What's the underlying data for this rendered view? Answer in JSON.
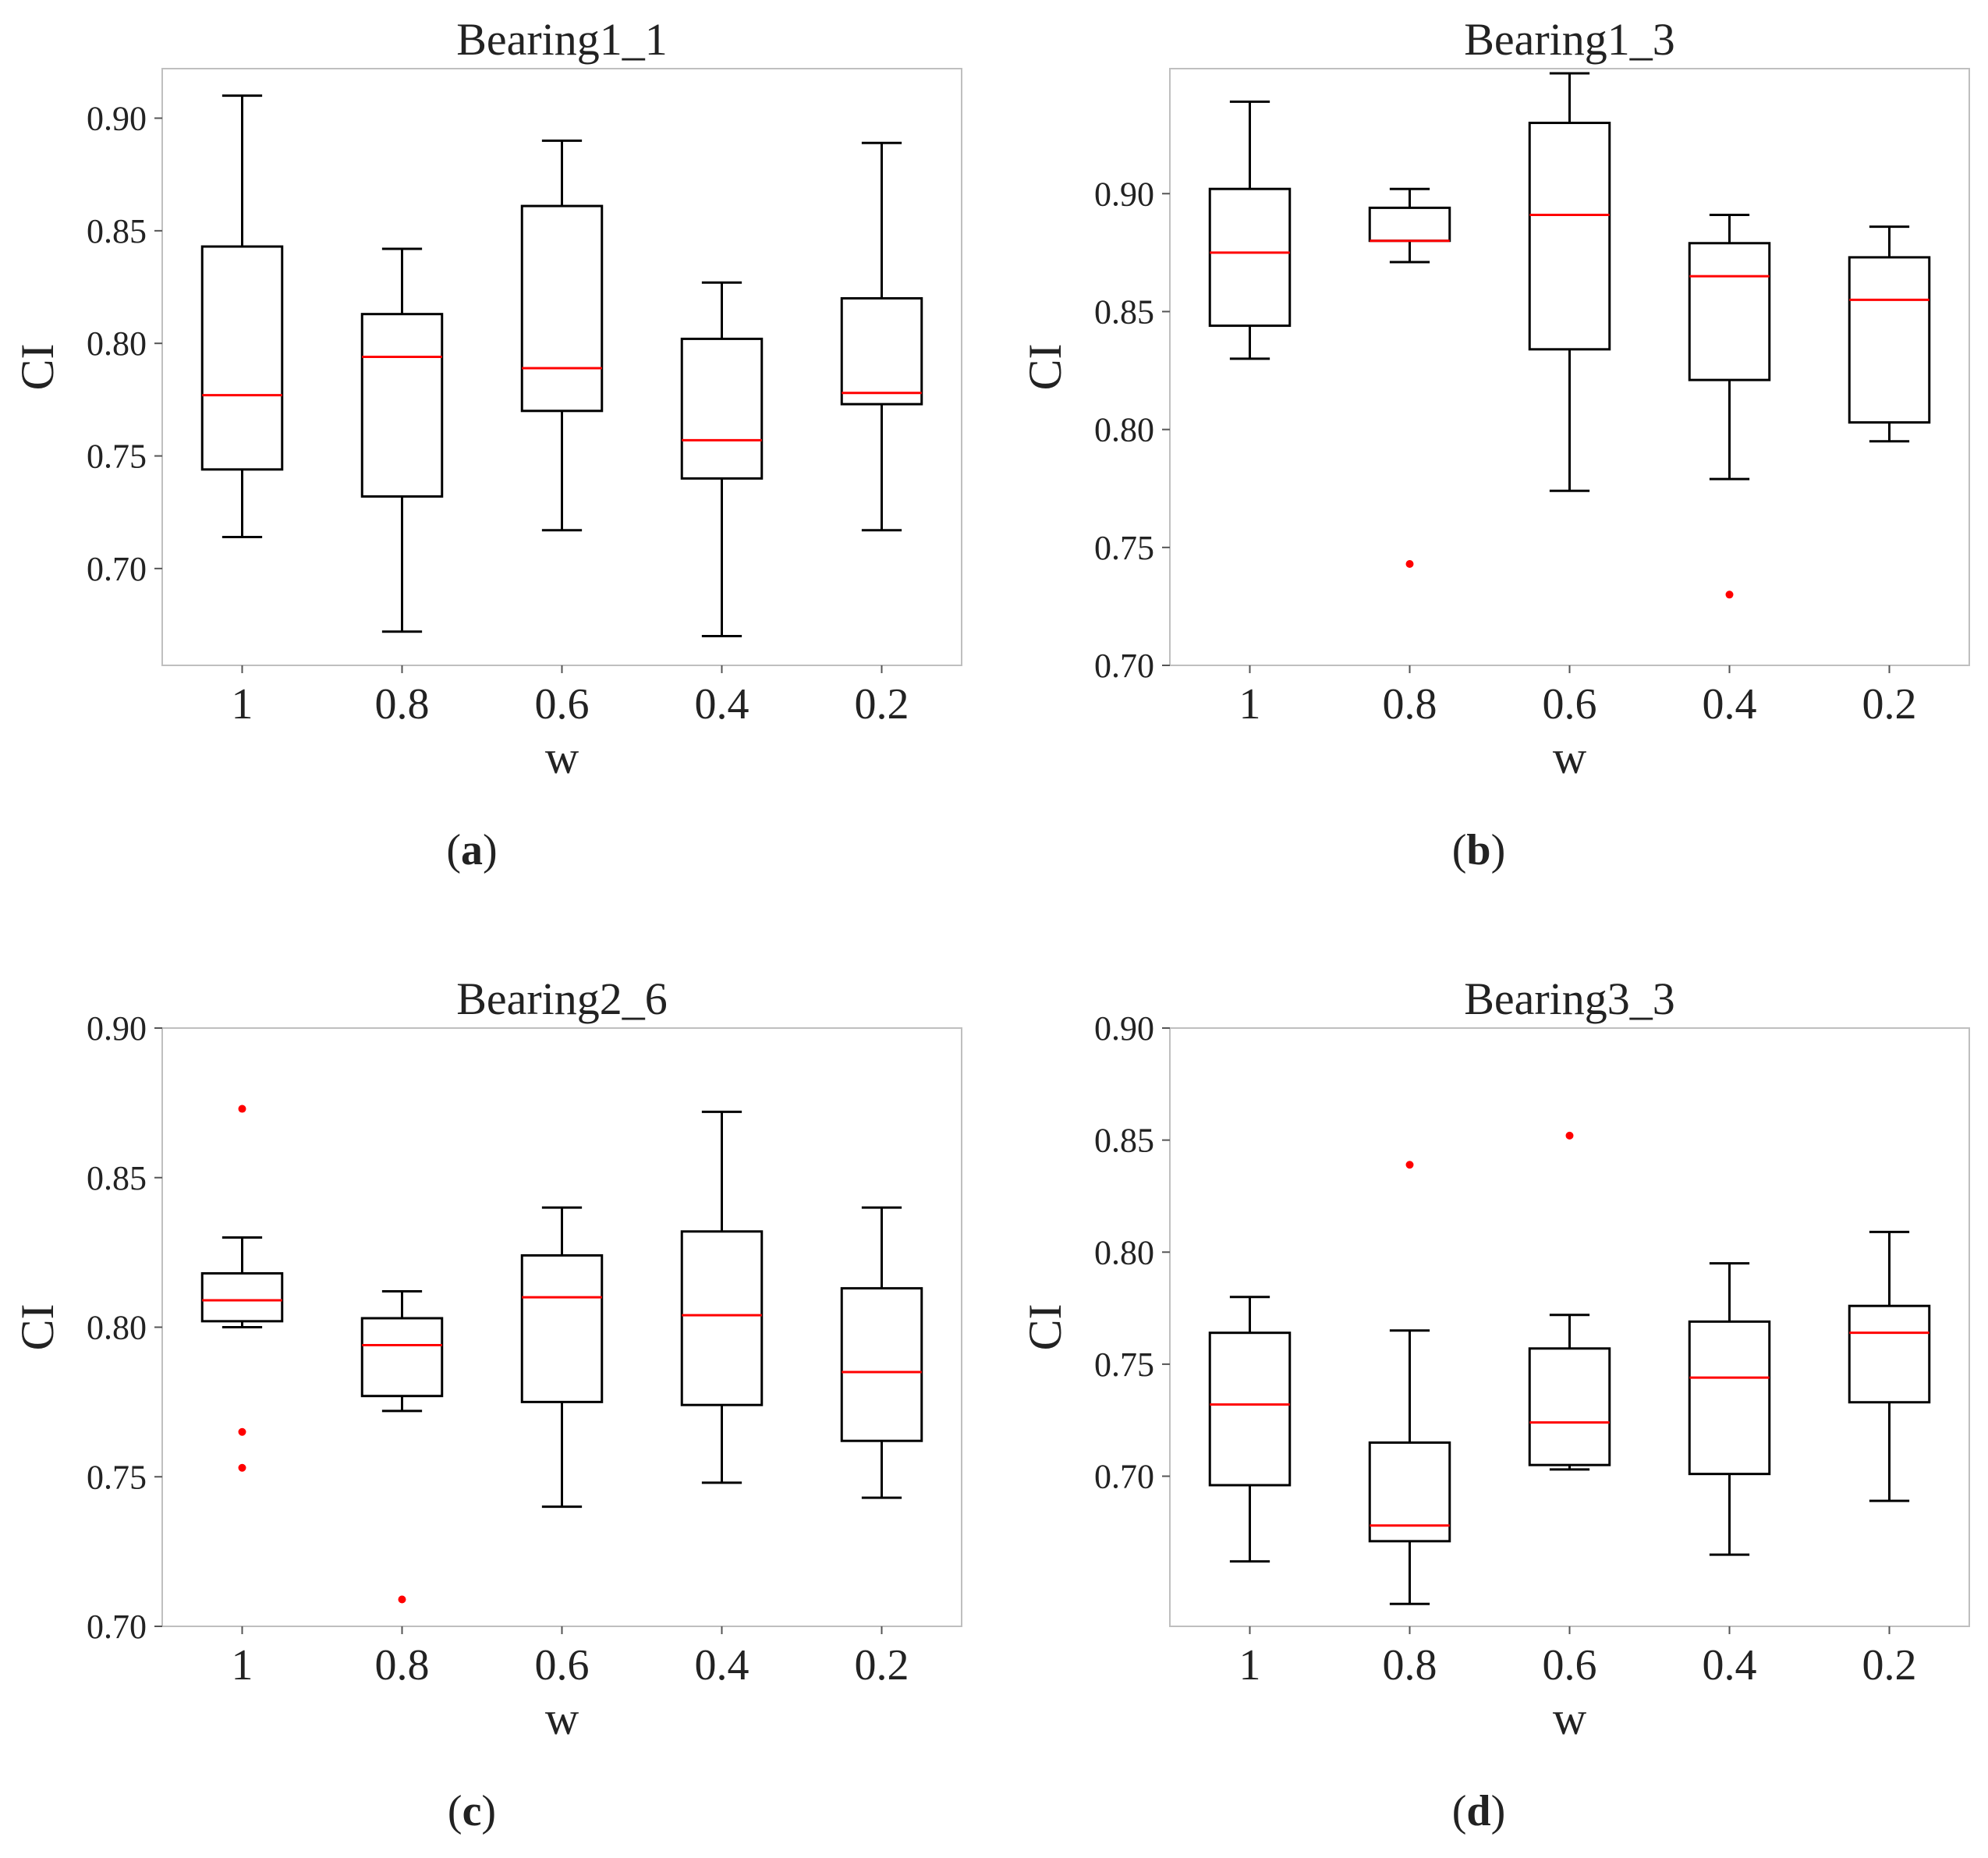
{
  "figure": {
    "captions": [
      "(a)",
      "(b)",
      "(c)",
      "(d)"
    ],
    "caption_letters": [
      "a",
      "b",
      "c",
      "d"
    ]
  },
  "colors": {
    "box": "#000000",
    "median": "#ff0000",
    "outlier": "#ff0000",
    "frame": "#bfbfbf"
  },
  "chart_data": [
    {
      "type": "boxplot",
      "title": "Bearing1_1",
      "xlabel": "w",
      "ylabel": "CI",
      "categories": [
        "1",
        "0.8",
        "0.6",
        "0.4",
        "0.2"
      ],
      "ylim": [
        0.657,
        0.922
      ],
      "yticks": [
        0.7,
        0.75,
        0.8,
        0.85,
        0.9
      ],
      "ytick_labels": [
        "0.70",
        "0.75",
        "0.80",
        "0.85",
        "0.90"
      ],
      "grid": false,
      "boxes": [
        {
          "whisker_low": 0.714,
          "q1": 0.744,
          "median": 0.777,
          "q3": 0.843,
          "whisker_high": 0.91,
          "outliers": []
        },
        {
          "whisker_low": 0.672,
          "q1": 0.732,
          "median": 0.794,
          "q3": 0.813,
          "whisker_high": 0.842,
          "outliers": []
        },
        {
          "whisker_low": 0.717,
          "q1": 0.77,
          "median": 0.789,
          "q3": 0.861,
          "whisker_high": 0.89,
          "outliers": []
        },
        {
          "whisker_low": 0.67,
          "q1": 0.74,
          "median": 0.757,
          "q3": 0.802,
          "whisker_high": 0.827,
          "outliers": []
        },
        {
          "whisker_low": 0.717,
          "q1": 0.773,
          "median": 0.778,
          "q3": 0.82,
          "whisker_high": 0.889,
          "outliers": []
        }
      ]
    },
    {
      "type": "boxplot",
      "title": "Bearing1_3",
      "xlabel": "w",
      "ylabel": "CI",
      "categories": [
        "1",
        "0.8",
        "0.6",
        "0.4",
        "0.2"
      ],
      "ylim": [
        0.7,
        0.953
      ],
      "yticks": [
        0.7,
        0.75,
        0.8,
        0.85,
        0.9
      ],
      "ytick_labels": [
        "0.70",
        "0.75",
        "0.80",
        "0.85",
        "0.90"
      ],
      "grid": false,
      "boxes": [
        {
          "whisker_low": 0.83,
          "q1": 0.844,
          "median": 0.875,
          "q3": 0.902,
          "whisker_high": 0.939,
          "outliers": []
        },
        {
          "whisker_low": 0.871,
          "q1": 0.88,
          "median": 0.88,
          "q3": 0.894,
          "whisker_high": 0.902,
          "outliers": [
            0.743
          ]
        },
        {
          "whisker_low": 0.774,
          "q1": 0.834,
          "median": 0.891,
          "q3": 0.93,
          "whisker_high": 0.951,
          "outliers": []
        },
        {
          "whisker_low": 0.779,
          "q1": 0.821,
          "median": 0.865,
          "q3": 0.879,
          "whisker_high": 0.891,
          "outliers": [
            0.73
          ]
        },
        {
          "whisker_low": 0.795,
          "q1": 0.803,
          "median": 0.855,
          "q3": 0.873,
          "whisker_high": 0.886,
          "outliers": []
        }
      ]
    },
    {
      "type": "boxplot",
      "title": "Bearing2_6",
      "xlabel": "w",
      "ylabel": "CI",
      "categories": [
        "1",
        "0.8",
        "0.6",
        "0.4",
        "0.2"
      ],
      "ylim": [
        0.7,
        0.9
      ],
      "yticks": [
        0.7,
        0.75,
        0.8,
        0.85,
        0.9
      ],
      "ytick_labels": [
        "0.70",
        "0.75",
        "0.80",
        "0.85",
        "0.90"
      ],
      "grid": false,
      "boxes": [
        {
          "whisker_low": 0.8,
          "q1": 0.802,
          "median": 0.809,
          "q3": 0.818,
          "whisker_high": 0.83,
          "outliers": [
            0.873,
            0.765,
            0.753
          ]
        },
        {
          "whisker_low": 0.772,
          "q1": 0.777,
          "median": 0.794,
          "q3": 0.803,
          "whisker_high": 0.812,
          "outliers": [
            0.709
          ]
        },
        {
          "whisker_low": 0.74,
          "q1": 0.775,
          "median": 0.81,
          "q3": 0.824,
          "whisker_high": 0.84,
          "outliers": []
        },
        {
          "whisker_low": 0.748,
          "q1": 0.774,
          "median": 0.804,
          "q3": 0.832,
          "whisker_high": 0.872,
          "outliers": []
        },
        {
          "whisker_low": 0.743,
          "q1": 0.762,
          "median": 0.785,
          "q3": 0.813,
          "whisker_high": 0.84,
          "outliers": []
        }
      ]
    },
    {
      "type": "boxplot",
      "title": "Bearing3_3",
      "xlabel": "w",
      "ylabel": "CI",
      "categories": [
        "1",
        "0.8",
        "0.6",
        "0.4",
        "0.2"
      ],
      "ylim": [
        0.633,
        0.9
      ],
      "yticks": [
        0.7,
        0.75,
        0.8,
        0.85,
        0.9
      ],
      "ytick_labels": [
        "0.70",
        "0.75",
        "0.80",
        "0.85",
        "0.90"
      ],
      "grid": false,
      "boxes": [
        {
          "whisker_low": 0.662,
          "q1": 0.696,
          "median": 0.732,
          "q3": 0.764,
          "whisker_high": 0.78,
          "outliers": []
        },
        {
          "whisker_low": 0.643,
          "q1": 0.671,
          "median": 0.678,
          "q3": 0.715,
          "whisker_high": 0.765,
          "outliers": [
            0.839
          ]
        },
        {
          "whisker_low": 0.703,
          "q1": 0.705,
          "median": 0.724,
          "q3": 0.757,
          "whisker_high": 0.772,
          "outliers": [
            0.852
          ]
        },
        {
          "whisker_low": 0.665,
          "q1": 0.701,
          "median": 0.744,
          "q3": 0.769,
          "whisker_high": 0.795,
          "outliers": []
        },
        {
          "whisker_low": 0.689,
          "q1": 0.733,
          "median": 0.764,
          "q3": 0.776,
          "whisker_high": 0.809,
          "outliers": []
        }
      ]
    }
  ]
}
